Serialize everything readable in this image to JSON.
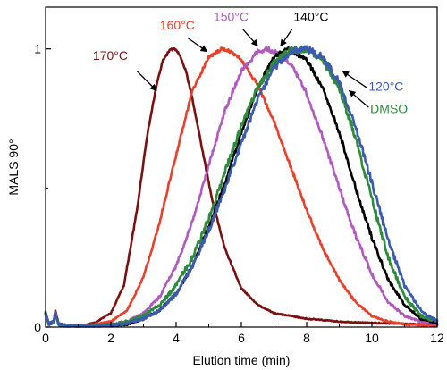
{
  "chart_data": {
    "type": "line",
    "xlabel": "Elution time (min)",
    "ylabel": "MALS 90°",
    "xlim": [
      0,
      12
    ],
    "ylim": [
      0,
      1.15
    ],
    "x_ticks": [
      0,
      2,
      4,
      6,
      8,
      10,
      12
    ],
    "x_tick_labels": [
      "0",
      "2",
      "4",
      "6",
      "8",
      "10",
      "12"
    ],
    "y_ticks": [
      0,
      1
    ],
    "y_tick_labels": [
      "0",
      "1"
    ],
    "grid": false,
    "legend": "none",
    "series": [
      {
        "name": "170°C",
        "color": "#7a1010",
        "noise": 0.004,
        "x": [
          0,
          0.1,
          0.25,
          0.3,
          0.4,
          0.6,
          1.0,
          1.5,
          2.0,
          2.4,
          2.8,
          3.1,
          3.4,
          3.6,
          3.8,
          3.95,
          4.1,
          4.3,
          4.5,
          4.8,
          5.1,
          5.5,
          6.0,
          6.5,
          7.0,
          7.5,
          8.0,
          9.0,
          10.0,
          11.0,
          12.0
        ],
        "y": [
          0.05,
          0.01,
          0.02,
          0.06,
          0.01,
          0.005,
          0.005,
          0.015,
          0.05,
          0.15,
          0.42,
          0.68,
          0.87,
          0.96,
          0.995,
          1.0,
          0.98,
          0.92,
          0.82,
          0.64,
          0.46,
          0.28,
          0.14,
          0.08,
          0.05,
          0.04,
          0.03,
          0.02,
          0.015,
          0.012,
          0.01
        ]
      },
      {
        "name": "160°C",
        "color": "#e8402a",
        "noise": 0.006,
        "x": [
          0,
          0.1,
          0.25,
          0.3,
          0.4,
          0.6,
          1.0,
          1.5,
          2.0,
          2.5,
          3.0,
          3.5,
          4.0,
          4.5,
          5.0,
          5.4,
          5.6,
          6.0,
          6.5,
          7.0,
          7.5,
          8.0,
          8.5,
          9.0,
          9.5,
          10.0,
          10.5,
          11.0,
          12.0
        ],
        "y": [
          0.05,
          0.01,
          0.02,
          0.05,
          0.01,
          0.005,
          0.005,
          0.01,
          0.02,
          0.06,
          0.18,
          0.38,
          0.62,
          0.85,
          0.97,
          1.0,
          0.995,
          0.96,
          0.87,
          0.74,
          0.58,
          0.42,
          0.28,
          0.17,
          0.09,
          0.04,
          0.02,
          0.01,
          0.005
        ]
      },
      {
        "name": "150°C",
        "color": "#b05ac0",
        "noise": 0.008,
        "x": [
          0,
          0.1,
          0.25,
          0.3,
          0.4,
          0.6,
          1.0,
          2.0,
          2.5,
          3.0,
          3.5,
          4.0,
          4.5,
          5.0,
          5.5,
          6.0,
          6.5,
          6.8,
          7.2,
          7.6,
          8.0,
          8.5,
          9.0,
          9.5,
          10.0,
          10.5,
          11.0,
          11.5,
          12.0
        ],
        "y": [
          0.05,
          0.01,
          0.02,
          0.05,
          0.01,
          0.005,
          0.003,
          0.005,
          0.02,
          0.05,
          0.11,
          0.22,
          0.38,
          0.58,
          0.78,
          0.92,
          0.99,
          1.0,
          0.98,
          0.93,
          0.84,
          0.68,
          0.5,
          0.33,
          0.19,
          0.09,
          0.04,
          0.02,
          0.01
        ]
      },
      {
        "name": "140°C",
        "color": "#000000",
        "noise": 0.008,
        "x": [
          0,
          0.1,
          0.25,
          0.3,
          0.4,
          0.6,
          1.0,
          2.0,
          2.5,
          3.0,
          3.5,
          4.0,
          4.5,
          5.0,
          5.5,
          6.0,
          6.5,
          7.0,
          7.4,
          7.6,
          8.0,
          8.5,
          9.0,
          9.5,
          10.0,
          10.5,
          11.0,
          11.5,
          12.0
        ],
        "y": [
          0.05,
          0.01,
          0.02,
          0.05,
          0.01,
          0.005,
          0.003,
          0.005,
          0.01,
          0.03,
          0.06,
          0.12,
          0.22,
          0.36,
          0.52,
          0.7,
          0.86,
          0.97,
          1.0,
          0.99,
          0.96,
          0.86,
          0.7,
          0.5,
          0.32,
          0.17,
          0.08,
          0.03,
          0.015
        ]
      },
      {
        "name": "DMSO",
        "color": "#2e8b3a",
        "noise": 0.012,
        "x": [
          0,
          0.1,
          0.25,
          0.3,
          0.4,
          0.6,
          1.0,
          2.0,
          2.5,
          3.0,
          3.5,
          4.0,
          4.5,
          5.0,
          5.5,
          6.0,
          6.5,
          7.0,
          7.5,
          8.0,
          8.5,
          9.0,
          9.5,
          10.0,
          10.5,
          11.0,
          11.5,
          12.0
        ],
        "y": [
          0.05,
          0.01,
          0.02,
          0.05,
          0.01,
          0.005,
          0.003,
          0.008,
          0.02,
          0.04,
          0.08,
          0.15,
          0.25,
          0.39,
          0.56,
          0.72,
          0.86,
          0.95,
          0.995,
          1.0,
          0.96,
          0.86,
          0.68,
          0.46,
          0.25,
          0.11,
          0.04,
          0.02
        ]
      },
      {
        "name": "120°C",
        "color": "#3a5bb0",
        "noise": 0.012,
        "x": [
          0,
          0.1,
          0.25,
          0.3,
          0.4,
          0.6,
          1.0,
          2.0,
          2.5,
          3.0,
          3.5,
          4.0,
          4.5,
          5.0,
          5.5,
          6.0,
          6.5,
          7.0,
          7.5,
          8.0,
          8.5,
          9.0,
          9.5,
          10.0,
          10.5,
          11.0,
          11.5,
          12.0
        ],
        "y": [
          0.05,
          0.01,
          0.02,
          0.05,
          0.01,
          0.005,
          0.003,
          0.006,
          0.015,
          0.03,
          0.06,
          0.12,
          0.22,
          0.35,
          0.5,
          0.66,
          0.82,
          0.93,
          0.99,
          1.0,
          0.97,
          0.88,
          0.72,
          0.52,
          0.31,
          0.15,
          0.06,
          0.02
        ]
      }
    ],
    "annotations": [
      {
        "text": "170°C",
        "color": "#7a1010",
        "text_at": [
          1.45,
          0.96
        ],
        "arrow_from": [
          2.8,
          0.92
        ],
        "arrow_to": [
          3.4,
          0.85
        ]
      },
      {
        "text": "160°C",
        "color": "#e8402a",
        "text_at": [
          3.5,
          1.07
        ],
        "arrow_from": [
          4.35,
          1.04
        ],
        "arrow_to": [
          4.95,
          0.99
        ]
      },
      {
        "text": "150°C",
        "color": "#b05ac0",
        "text_at": [
          5.15,
          1.1
        ],
        "arrow_from": [
          6.05,
          1.07
        ],
        "arrow_to": [
          6.5,
          1.01
        ]
      },
      {
        "text": "140°C",
        "color": "#000000",
        "text_at": [
          7.6,
          1.1
        ],
        "arrow_from": [
          7.55,
          1.07
        ],
        "arrow_to": [
          7.2,
          1.01
        ]
      },
      {
        "text": "120°C",
        "color": "#3a5bb0",
        "text_at": [
          9.9,
          0.85
        ],
        "arrow_from": [
          9.85,
          0.86
        ],
        "arrow_to": [
          9.1,
          0.92
        ]
      },
      {
        "text": "DMSO",
        "color": "#2e8b3a",
        "text_at": [
          9.95,
          0.77
        ],
        "arrow_from": [
          9.9,
          0.79
        ],
        "arrow_to": [
          9.3,
          0.85
        ]
      }
    ]
  }
}
